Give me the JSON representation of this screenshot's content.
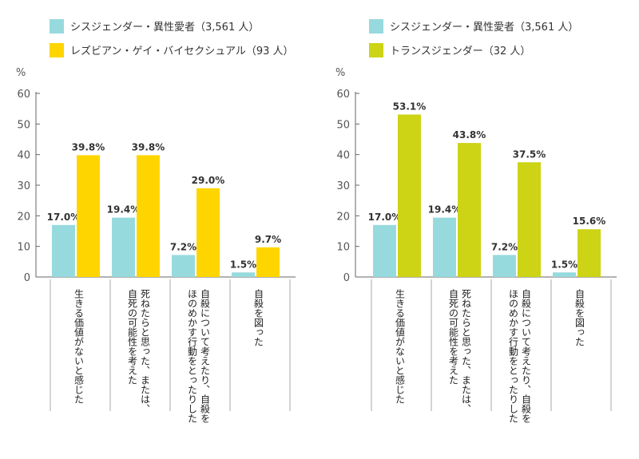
{
  "chart_data": [
    {
      "type": "bar",
      "ylabel": "%",
      "ylim": [
        0,
        60
      ],
      "yticks": [
        0,
        10,
        20,
        30,
        40,
        50,
        60
      ],
      "grid": false,
      "legend_position": "top-left",
      "categories": [
        [
          "生きる価値がないと感じた"
        ],
        [
          "死ねたらと思った、または、",
          "自死の可能性を考えた"
        ],
        [
          "自殺について考えたり、自殺を",
          "ほのめかす行動をとったりした"
        ],
        [
          "自殺を図った"
        ]
      ],
      "series": [
        {
          "name": "シスジェンダー・異性愛者（3,561 人）",
          "color": "#97dade",
          "values": [
            17.0,
            19.4,
            7.2,
            1.5
          ],
          "labels": [
            "17.0%",
            "19.4%",
            "7.2%",
            "1.5%"
          ]
        },
        {
          "name": "レズビアン・ゲイ・バイセクシュアル（93 人）",
          "color": "#ffd500",
          "values": [
            39.8,
            39.8,
            29.0,
            9.7
          ],
          "labels": [
            "39.8%",
            "39.8%",
            "29.0%",
            "9.7%"
          ]
        }
      ]
    },
    {
      "type": "bar",
      "ylabel": "%",
      "ylim": [
        0,
        60
      ],
      "yticks": [
        0,
        10,
        20,
        30,
        40,
        50,
        60
      ],
      "grid": false,
      "legend_position": "top-left",
      "categories": [
        [
          "生きる価値がないと感じた"
        ],
        [
          "死ねたらと思った、または、",
          "自死の可能性を考えた"
        ],
        [
          "自殺について考えたり、自殺を",
          "ほのめかす行動をとったりした"
        ],
        [
          "自殺を図った"
        ]
      ],
      "series": [
        {
          "name": "シスジェンダー・異性愛者（3,561 人）",
          "color": "#97dade",
          "values": [
            17.0,
            19.4,
            7.2,
            1.5
          ],
          "labels": [
            "17.0%",
            "19.4%",
            "7.2%",
            "1.5%"
          ]
        },
        {
          "name": "トランスジェンダー（32 人）",
          "color": "#cdd415",
          "values": [
            53.1,
            43.8,
            37.5,
            15.6
          ],
          "labels": [
            "53.1%",
            "43.8%",
            "37.5%",
            "15.6%"
          ]
        }
      ]
    }
  ]
}
